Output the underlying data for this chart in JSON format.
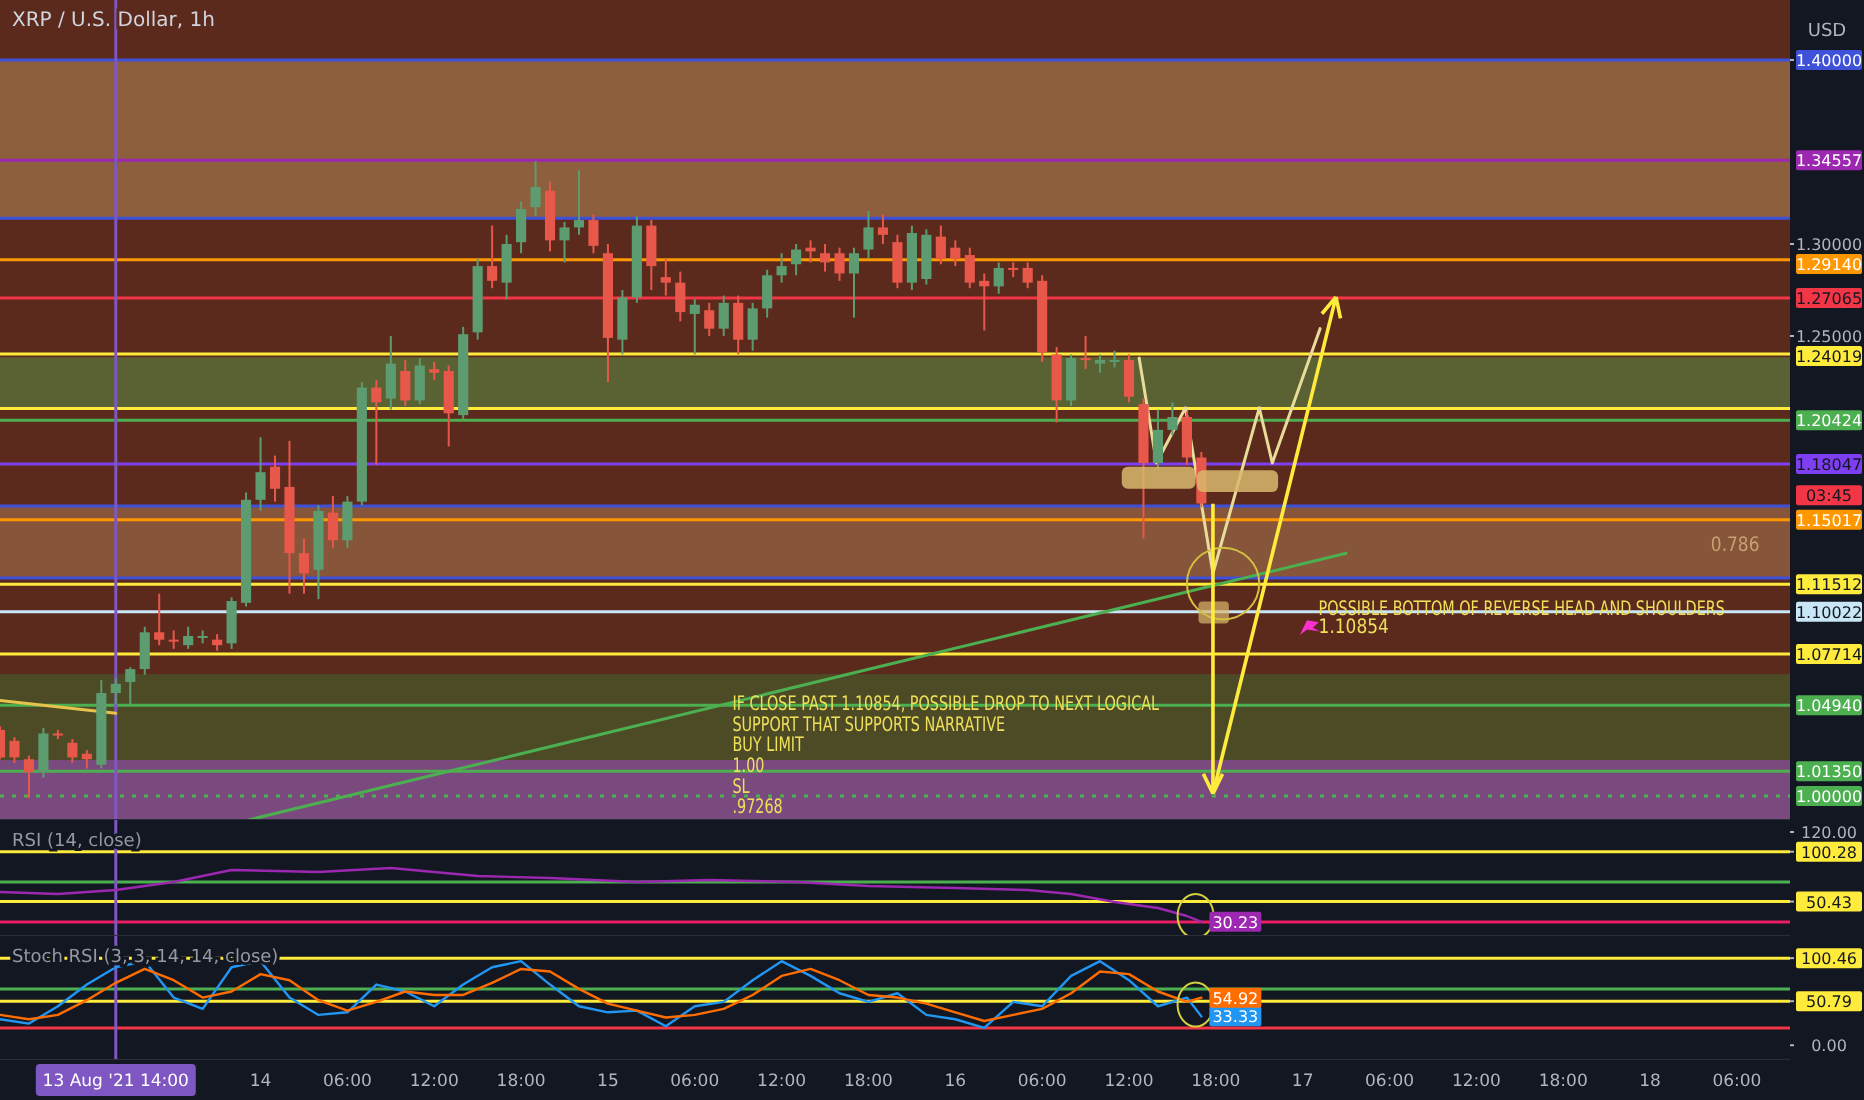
{
  "chart_data": [
    {
      "type": "candlestick",
      "title": "XRP / U.S. Dollar, 1h",
      "ylabel": "USD",
      "tick_labels": "y",
      "xlim": [
        "2021-08-13T06:00",
        "2021-08-18T09:40"
      ],
      "ylim": [
        0.987,
        1.4326
      ],
      "yticks": [
        {
          "value": 1.4,
          "label": "1.40000"
        },
        {
          "value": 1.3,
          "label": "1.30000"
        },
        {
          "value": 1.25,
          "label": "1.25000"
        }
      ],
      "x": [
        "2021-08-13T06:00",
        "2021-08-13T07:00",
        "2021-08-13T08:00",
        "2021-08-13T09:00",
        "2021-08-13T10:00",
        "2021-08-13T11:00",
        "2021-08-13T12:00",
        "2021-08-13T13:00",
        "2021-08-13T14:00",
        "2021-08-13T15:00",
        "2021-08-13T16:00",
        "2021-08-13T17:00",
        "2021-08-13T18:00",
        "2021-08-13T19:00",
        "2021-08-13T20:00",
        "2021-08-13T21:00",
        "2021-08-13T22:00",
        "2021-08-13T23:00",
        "2021-08-14T00:00",
        "2021-08-14T01:00",
        "2021-08-14T02:00",
        "2021-08-14T03:00",
        "2021-08-14T04:00",
        "2021-08-14T05:00",
        "2021-08-14T06:00",
        "2021-08-14T07:00",
        "2021-08-14T08:00",
        "2021-08-14T09:00",
        "2021-08-14T10:00",
        "2021-08-14T11:00",
        "2021-08-14T12:00",
        "2021-08-14T13:00",
        "2021-08-14T14:00",
        "2021-08-14T15:00",
        "2021-08-14T16:00",
        "2021-08-14T17:00",
        "2021-08-14T18:00",
        "2021-08-14T19:00",
        "2021-08-14T20:00",
        "2021-08-14T21:00",
        "2021-08-14T22:00",
        "2021-08-14T23:00",
        "2021-08-15T00:00",
        "2021-08-15T01:00",
        "2021-08-15T02:00",
        "2021-08-15T03:00",
        "2021-08-15T04:00",
        "2021-08-15T05:00",
        "2021-08-15T06:00",
        "2021-08-15T07:00",
        "2021-08-15T08:00",
        "2021-08-15T09:00",
        "2021-08-15T10:00",
        "2021-08-15T11:00",
        "2021-08-15T12:00",
        "2021-08-15T13:00",
        "2021-08-15T14:00",
        "2021-08-15T15:00",
        "2021-08-15T16:00",
        "2021-08-15T17:00",
        "2021-08-15T18:00",
        "2021-08-15T19:00",
        "2021-08-15T20:00",
        "2021-08-15T21:00",
        "2021-08-15T22:00",
        "2021-08-15T23:00",
        "2021-08-16T00:00",
        "2021-08-16T01:00",
        "2021-08-16T02:00",
        "2021-08-16T03:00",
        "2021-08-16T04:00",
        "2021-08-16T05:00",
        "2021-08-16T06:00",
        "2021-08-16T07:00",
        "2021-08-16T08:00",
        "2021-08-16T09:00",
        "2021-08-16T10:00",
        "2021-08-16T11:00",
        "2021-08-16T12:00",
        "2021-08-16T13:00",
        "2021-08-16T14:00",
        "2021-08-16T15:00",
        "2021-08-16T16:00",
        "2021-08-16T17:00"
      ],
      "ohlc": [
        [
          1.036,
          1.038,
          1.02,
          1.021
        ],
        [
          1.03,
          1.032,
          1.018,
          1.021
        ],
        [
          1.02,
          1.022,
          0.999,
          1.013
        ],
        [
          1.013,
          1.037,
          1.01,
          1.034
        ],
        [
          1.034,
          1.036,
          1.031,
          1.033
        ],
        [
          1.029,
          1.031,
          1.018,
          1.021
        ],
        [
          1.023,
          1.025,
          1.015,
          1.02
        ],
        [
          1.017,
          1.063,
          1.015,
          1.056
        ],
        [
          1.056,
          1.064,
          1.05,
          1.061
        ],
        [
          1.062,
          1.07,
          1.05,
          1.069
        ],
        [
          1.069,
          1.092,
          1.066,
          1.089
        ],
        [
          1.089,
          1.11,
          1.082,
          1.085
        ],
        [
          1.085,
          1.09,
          1.08,
          1.084
        ],
        [
          1.082,
          1.092,
          1.08,
          1.087
        ],
        [
          1.086,
          1.09,
          1.083,
          1.087
        ],
        [
          1.085,
          1.088,
          1.079,
          1.082
        ],
        [
          1.083,
          1.108,
          1.08,
          1.106
        ],
        [
          1.105,
          1.165,
          1.103,
          1.161
        ],
        [
          1.161,
          1.195,
          1.155,
          1.176
        ],
        [
          1.179,
          1.185,
          1.16,
          1.167
        ],
        [
          1.168,
          1.193,
          1.11,
          1.132
        ],
        [
          1.132,
          1.14,
          1.11,
          1.121
        ],
        [
          1.123,
          1.158,
          1.107,
          1.155
        ],
        [
          1.154,
          1.163,
          1.135,
          1.139
        ],
        [
          1.139,
          1.163,
          1.135,
          1.16
        ],
        [
          1.16,
          1.225,
          1.158,
          1.222
        ],
        [
          1.222,
          1.226,
          1.18,
          1.214
        ],
        [
          1.216,
          1.25,
          1.21,
          1.235
        ],
        [
          1.231,
          1.237,
          1.212,
          1.215
        ],
        [
          1.215,
          1.238,
          1.213,
          1.234
        ],
        [
          1.232,
          1.236,
          1.226,
          1.23
        ],
        [
          1.231,
          1.234,
          1.19,
          1.208
        ],
        [
          1.207,
          1.255,
          1.205,
          1.251
        ],
        [
          1.252,
          1.292,
          1.248,
          1.288
        ],
        [
          1.288,
          1.31,
          1.276,
          1.28
        ],
        [
          1.279,
          1.305,
          1.27,
          1.3
        ],
        [
          1.301,
          1.323,
          1.295,
          1.319
        ],
        [
          1.32,
          1.345,
          1.315,
          1.331
        ],
        [
          1.329,
          1.334,
          1.296,
          1.302
        ],
        [
          1.302,
          1.312,
          1.29,
          1.309
        ],
        [
          1.309,
          1.34,
          1.305,
          1.313
        ],
        [
          1.313,
          1.316,
          1.295,
          1.299
        ],
        [
          1.295,
          1.3,
          1.225,
          1.249
        ],
        [
          1.248,
          1.275,
          1.24,
          1.271
        ],
        [
          1.271,
          1.315,
          1.268,
          1.31
        ],
        [
          1.31,
          1.313,
          1.275,
          1.288
        ],
        [
          1.282,
          1.292,
          1.272,
          1.279
        ],
        [
          1.279,
          1.285,
          1.258,
          1.263
        ],
        [
          1.262,
          1.27,
          1.24,
          1.267
        ],
        [
          1.264,
          1.268,
          1.25,
          1.254
        ],
        [
          1.254,
          1.272,
          1.25,
          1.268
        ],
        [
          1.268,
          1.272,
          1.24,
          1.248
        ],
        [
          1.248,
          1.268,
          1.242,
          1.265
        ],
        [
          1.265,
          1.286,
          1.26,
          1.283
        ],
        [
          1.283,
          1.295,
          1.279,
          1.288
        ],
        [
          1.289,
          1.3,
          1.283,
          1.297
        ],
        [
          1.298,
          1.302,
          1.29,
          1.296
        ],
        [
          1.295,
          1.3,
          1.285,
          1.29
        ],
        [
          1.295,
          1.298,
          1.28,
          1.284
        ],
        [
          1.284,
          1.298,
          1.26,
          1.295
        ],
        [
          1.297,
          1.318,
          1.292,
          1.309
        ],
        [
          1.309,
          1.316,
          1.3,
          1.305
        ],
        [
          1.301,
          1.305,
          1.276,
          1.279
        ],
        [
          1.279,
          1.31,
          1.275,
          1.306
        ],
        [
          1.281,
          1.308,
          1.278,
          1.305
        ],
        [
          1.304,
          1.31,
          1.289,
          1.292
        ],
        [
          1.298,
          1.302,
          1.288,
          1.292
        ],
        [
          1.294,
          1.298,
          1.276,
          1.279
        ],
        [
          1.28,
          1.284,
          1.253,
          1.277
        ],
        [
          1.277,
          1.29,
          1.273,
          1.287
        ],
        [
          1.287,
          1.29,
          1.282,
          1.286
        ],
        [
          1.287,
          1.29,
          1.276,
          1.279
        ],
        [
          1.28,
          1.283,
          1.236,
          1.241
        ],
        [
          1.24,
          1.244,
          1.203,
          1.215
        ],
        [
          1.215,
          1.24,
          1.212,
          1.238
        ],
        [
          1.238,
          1.25,
          1.232,
          1.237
        ],
        [
          1.235,
          1.24,
          1.23,
          1.237
        ],
        [
          1.237,
          1.242,
          1.233,
          1.237
        ],
        [
          1.237,
          1.24,
          1.214,
          1.217
        ],
        [
          1.213,
          1.216,
          1.14,
          1.181
        ],
        [
          1.181,
          1.21,
          1.178,
          1.199
        ],
        [
          1.199,
          1.214,
          1.196,
          1.206
        ],
        [
          1.206,
          1.209,
          1.18,
          1.184
        ],
        [
          1.184,
          1.187,
          1.157,
          1.159
        ]
      ],
      "series": [
        {
          "type": "line",
          "color": "#4caf50",
          "x": [
            "2021-08-13T23:10",
            "2021-08-17T03:00"
          ],
          "values": [
            0.987,
            1.132
          ]
        },
        {
          "type": "line",
          "color": "#e8dc9a",
          "x": [
            "2021-08-16T12:42",
            "2021-08-16T13:54",
            "2021-08-16T15:54",
            "2021-08-16T17:48",
            "2021-08-16T21:00",
            "2021-08-16T21:54",
            "2021-08-17T01:12"
          ],
          "values": [
            1.238,
            1.181,
            1.211,
            1.121,
            1.211,
            1.181,
            1.254
          ]
        },
        {
          "type": "line",
          "color": "#e6c34a",
          "x": [
            "2021-08-13T06:00",
            "2021-08-13T14:00"
          ],
          "values": [
            1.052,
            1.045
          ]
        }
      ],
      "bands": [
        {
          "axis": "y",
          "from": 1.314,
          "to": 1.4,
          "color": "#8e5f3c"
        },
        {
          "axis": "y",
          "from": 1.2106,
          "to": 1.2385,
          "color": "#5a6233"
        },
        {
          "axis": "y",
          "from": 1.1185,
          "to": 1.1576,
          "color": "#87553a"
        },
        {
          "axis": "y",
          "from": 1.0196,
          "to": 1.0663,
          "color": "#4d4a26"
        },
        {
          "axis": "y",
          "from": 0.987,
          "to": 1.0196,
          "color": "#7a4a7e"
        }
      ],
      "ref_lines": [
        {
          "axis": "y",
          "value": 1.4,
          "label": null,
          "color": "#3f51d8"
        },
        {
          "axis": "y",
          "value": 1.34557,
          "label": "1.34557",
          "color": "#9c27b0"
        },
        {
          "axis": "y",
          "value": 1.314,
          "label": null,
          "color": "#3f51d8"
        },
        {
          "axis": "y",
          "value": 1.2914,
          "label": "1.29140",
          "color": "#ff9800"
        },
        {
          "axis": "y",
          "value": 1.27065,
          "label": "1.27065",
          "color": "#f23645"
        },
        {
          "axis": "y",
          "value": 1.24019,
          "label": "1.24019",
          "color": "#ffeb3b"
        },
        {
          "axis": "y",
          "value": 1.2106,
          "label": null,
          "color": "#ffeb3b"
        },
        {
          "axis": "y",
          "value": 1.20424,
          "label": "1.20424",
          "color": "#4caf50"
        },
        {
          "axis": "y",
          "value": 1.18047,
          "label": "1.18047",
          "color": "#7e3ff2"
        },
        {
          "axis": "y",
          "value": 1.1576,
          "label": null,
          "color": "#3f51d8"
        },
        {
          "axis": "y",
          "value": 1.15017,
          "label": "1.15017",
          "color": "#ff9800"
        },
        {
          "axis": "y",
          "value": 1.1185,
          "label": null,
          "color": "#3f51d8"
        },
        {
          "axis": "y",
          "value": 1.11512,
          "label": "1.11512",
          "color": "#ffeb3b"
        },
        {
          "axis": "y",
          "value": 1.10022,
          "label": "1.10022",
          "color": "#c8e6f5"
        },
        {
          "axis": "y",
          "value": 1.07714,
          "label": "1.07714",
          "color": "#ffeb3b"
        },
        {
          "axis": "y",
          "value": 1.0494,
          "label": "1.04940",
          "color": "#4caf50"
        },
        {
          "axis": "y",
          "value": 1.0135,
          "label": "1.01350",
          "color": "#4caf50"
        },
        {
          "axis": "y",
          "value": 1.0,
          "label": "1.00000",
          "color": "#4caf50",
          "line_style": "dotted"
        },
        {
          "axis": "x",
          "value": "2021-08-13T14:00",
          "label": null,
          "color": "#7e57c2"
        }
      ],
      "annotations": [
        "03:45",
        "0.786",
        "POSSIBLE BOTTOM OF REVERSE HEAD AND SHOULDERS",
        "1.10854",
        "IF CLOSE PAST 1.10854, POSSIBLE DROP TO NEXT LOGICAL\nSUPPORT THAT SUPPORTS NARRATIVE\nBUY LIMIT\n1.00\nSL\n.97268"
      ]
    },
    {
      "type": "line",
      "title": "RSI (14, close)",
      "tick_labels": "y",
      "xlim": [
        "2021-08-13T06:00",
        "2021-08-18T09:40"
      ],
      "ylim": [
        16,
        132
      ],
      "yticks": [
        {
          "value": 120,
          "label": "120.00"
        },
        {
          "value": 100.28,
          "label": "100.28"
        },
        {
          "value": 50.43,
          "label": "50.43"
        }
      ],
      "x": [
        "2021-08-13T06:00",
        "2021-08-13T10:00",
        "2021-08-13T14:00",
        "2021-08-13T18:00",
        "2021-08-13T22:00",
        "2021-08-14T04:00",
        "2021-08-14T09:00",
        "2021-08-14T15:00",
        "2021-08-14T20:00",
        "2021-08-15T02:00",
        "2021-08-15T07:00",
        "2021-08-15T13:00",
        "2021-08-15T18:00",
        "2021-08-16T00:00",
        "2021-08-16T05:00",
        "2021-08-16T08:00",
        "2021-08-16T11:00",
        "2021-08-16T14:00",
        "2021-08-16T16:00",
        "2021-08-16T17:00"
      ],
      "series": [
        {
          "type": "line",
          "color": "#9c27b0",
          "values": [
            60,
            58,
            62,
            70,
            82,
            80,
            84,
            76,
            74,
            70,
            72,
            70,
            66,
            64,
            62,
            58,
            50,
            44,
            36,
            30.23
          ],
          "value_labels": [
            null,
            null,
            null,
            null,
            null,
            null,
            null,
            null,
            null,
            null,
            null,
            null,
            null,
            null,
            null,
            null,
            null,
            null,
            null,
            "30.23"
          ]
        }
      ],
      "ref_lines": [
        {
          "axis": "y",
          "value": 100.28,
          "label": null,
          "color": "#ffeb3b"
        },
        {
          "axis": "y",
          "value": 70,
          "label": null,
          "color": "#4caf50"
        },
        {
          "axis": "y",
          "value": 50.43,
          "label": null,
          "color": "#ffeb3b"
        },
        {
          "axis": "y",
          "value": 30,
          "label": null,
          "color": "#e91e63"
        },
        {
          "axis": "x",
          "value": "2021-08-13T14:00",
          "label": null,
          "color": "#7e57c2"
        }
      ]
    },
    {
      "type": "line",
      "title": "Stoch RSI (3, 3, 14, 14, close)",
      "xlim": [
        "2021-08-13T06:00",
        "2021-08-18T09:40"
      ],
      "ylim": [
        -17,
        126
      ],
      "yticks": [
        {
          "value": 100.46,
          "label": "100.46"
        },
        {
          "value": 50.79,
          "label": "50.79"
        },
        {
          "value": 0,
          "label": "0.00"
        }
      ],
      "xticks": [
        {
          "value": "2021-08-14T00:00",
          "label": "14"
        },
        {
          "value": "2021-08-14T06:00",
          "label": "06:00"
        },
        {
          "value": "2021-08-14T12:00",
          "label": "12:00"
        },
        {
          "value": "2021-08-14T18:00",
          "label": "18:00"
        },
        {
          "value": "2021-08-15T00:00",
          "label": "15"
        },
        {
          "value": "2021-08-15T06:00",
          "label": "06:00"
        },
        {
          "value": "2021-08-15T12:00",
          "label": "12:00"
        },
        {
          "value": "2021-08-15T18:00",
          "label": "18:00"
        },
        {
          "value": "2021-08-16T00:00",
          "label": "16"
        },
        {
          "value": "2021-08-16T06:00",
          "label": "06:00"
        },
        {
          "value": "2021-08-16T12:00",
          "label": "12:00"
        },
        {
          "value": "2021-08-16T18:00",
          "label": "18:00"
        },
        {
          "value": "2021-08-17T00:00",
          "label": "17"
        },
        {
          "value": "2021-08-17T06:00",
          "label": "06:00"
        },
        {
          "value": "2021-08-17T12:00",
          "label": "12:00"
        },
        {
          "value": "2021-08-17T18:00",
          "label": "18:00"
        },
        {
          "value": "2021-08-18T00:00",
          "label": "18"
        },
        {
          "value": "2021-08-18T06:00",
          "label": "06:00"
        }
      ],
      "x": [
        "2021-08-13T06:00",
        "2021-08-13T08:00",
        "2021-08-13T10:00",
        "2021-08-13T12:00",
        "2021-08-13T14:00",
        "2021-08-13T16:00",
        "2021-08-13T18:00",
        "2021-08-13T20:00",
        "2021-08-13T22:00",
        "2021-08-14T00:00",
        "2021-08-14T02:00",
        "2021-08-14T04:00",
        "2021-08-14T06:00",
        "2021-08-14T08:00",
        "2021-08-14T10:00",
        "2021-08-14T12:00",
        "2021-08-14T14:00",
        "2021-08-14T16:00",
        "2021-08-14T18:00",
        "2021-08-14T20:00",
        "2021-08-14T22:00",
        "2021-08-15T00:00",
        "2021-08-15T02:00",
        "2021-08-15T04:00",
        "2021-08-15T06:00",
        "2021-08-15T08:00",
        "2021-08-15T10:00",
        "2021-08-15T12:00",
        "2021-08-15T14:00",
        "2021-08-15T16:00",
        "2021-08-15T18:00",
        "2021-08-15T20:00",
        "2021-08-15T22:00",
        "2021-08-16T00:00",
        "2021-08-16T02:00",
        "2021-08-16T04:00",
        "2021-08-16T06:00",
        "2021-08-16T08:00",
        "2021-08-16T10:00",
        "2021-08-16T12:00",
        "2021-08-16T14:00",
        "2021-08-16T16:00",
        "2021-08-16T17:00"
      ],
      "series": [
        {
          "type": "line",
          "color": "#2196f3",
          "values": [
            30,
            25,
            45,
            70,
            90,
            97,
            55,
            42,
            90,
            97,
            55,
            35,
            38,
            70,
            62,
            45,
            70,
            90,
            97,
            70,
            45,
            38,
            40,
            22,
            45,
            50,
            75,
            97,
            80,
            60,
            50,
            60,
            35,
            30,
            20,
            50,
            45,
            80,
            97,
            75,
            45,
            55,
            33.33
          ],
          "value_labels": [
            null,
            null,
            null,
            null,
            null,
            null,
            null,
            null,
            null,
            null,
            null,
            null,
            null,
            null,
            null,
            null,
            null,
            null,
            null,
            null,
            null,
            null,
            null,
            null,
            null,
            null,
            null,
            null,
            null,
            null,
            null,
            null,
            null,
            null,
            null,
            null,
            null,
            null,
            null,
            null,
            null,
            null,
            "33.33"
          ]
        },
        {
          "type": "line",
          "color": "#ff6d00",
          "values": [
            35,
            30,
            35,
            52,
            72,
            88,
            75,
            55,
            62,
            82,
            75,
            52,
            40,
            50,
            62,
            58,
            58,
            72,
            88,
            85,
            65,
            48,
            40,
            32,
            35,
            42,
            58,
            80,
            88,
            75,
            58,
            55,
            48,
            38,
            28,
            35,
            42,
            60,
            85,
            82,
            62,
            50,
            54.92
          ],
          "value_labels": [
            null,
            null,
            null,
            null,
            null,
            null,
            null,
            null,
            null,
            null,
            null,
            null,
            null,
            null,
            null,
            null,
            null,
            null,
            null,
            null,
            null,
            null,
            null,
            null,
            null,
            null,
            null,
            null,
            null,
            null,
            null,
            null,
            null,
            null,
            null,
            null,
            null,
            null,
            null,
            null,
            null,
            null,
            "54.92"
          ]
        }
      ],
      "ref_lines": [
        {
          "axis": "y",
          "value": 100.46,
          "label": null,
          "color": "#ffeb3b"
        },
        {
          "axis": "y",
          "value": 65,
          "label": null,
          "color": "#4caf50"
        },
        {
          "axis": "y",
          "value": 50.79,
          "label": null,
          "color": "#ffeb3b"
        },
        {
          "axis": "y",
          "value": 20,
          "label": null,
          "color": "#f23645"
        },
        {
          "axis": "x",
          "value": "2021-08-13T14:00",
          "label": "13 Aug '21  14:00",
          "color": "#7e57c2"
        }
      ]
    }
  ]
}
